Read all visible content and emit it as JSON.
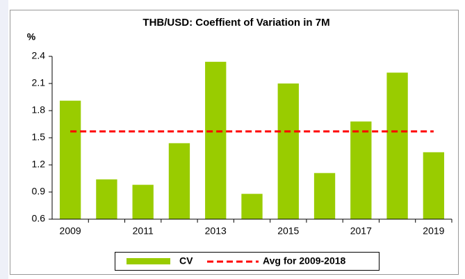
{
  "chart_data": {
    "type": "bar",
    "title": "THB/USD: Coeffient of Variation in 7M",
    "y_label": "%",
    "categories": [
      "2009",
      null,
      "2011",
      null,
      "2013",
      null,
      "2015",
      null,
      "2017",
      null,
      "2019"
    ],
    "series": [
      {
        "name": "CV",
        "color": "#99cc00",
        "values": [
          1.91,
          1.04,
          0.98,
          1.44,
          2.34,
          0.88,
          2.1,
          1.11,
          1.68,
          2.22,
          1.34
        ]
      }
    ],
    "reference_line": {
      "name": "Avg for 2009-2018",
      "color": "#ff0000",
      "value": 1.57
    },
    "ylim": [
      0.6,
      2.4
    ],
    "yticks": [
      0.6,
      0.9,
      1.2,
      1.5,
      1.8,
      2.1,
      2.4
    ],
    "legend": "bottom"
  }
}
